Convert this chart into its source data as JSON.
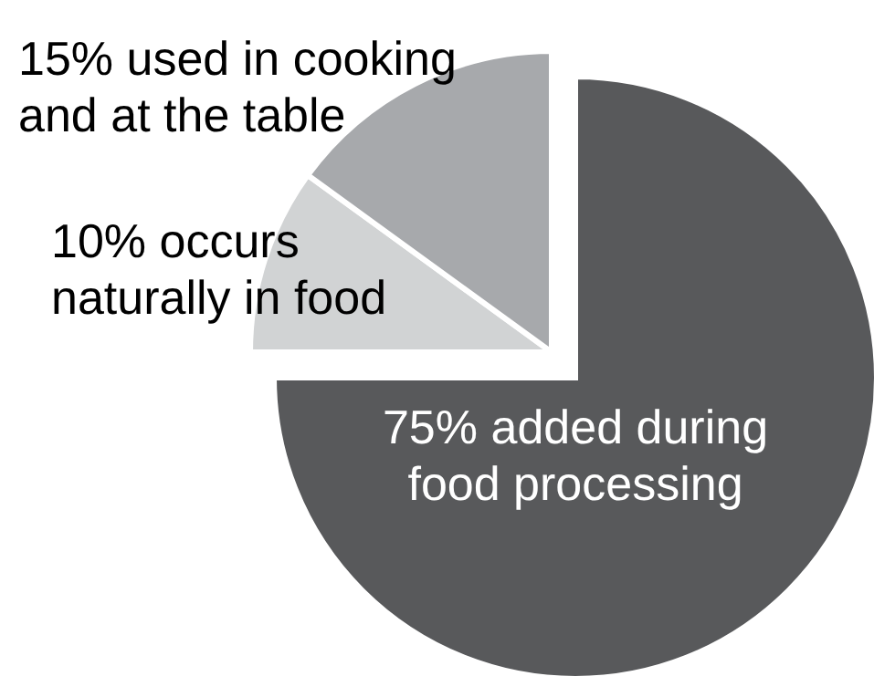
{
  "chart_data": {
    "type": "pie",
    "categories": [
      "added during\nfood processing",
      "occurs\nnaturally in food",
      "used in cooking\nand at the table"
    ],
    "values": [
      75,
      10,
      15
    ],
    "value_labels": [
      "75%",
      "10%",
      "15%"
    ],
    "colors": [
      "#58595b",
      "#d1d3d4",
      "#a7a9ac"
    ]
  }
}
